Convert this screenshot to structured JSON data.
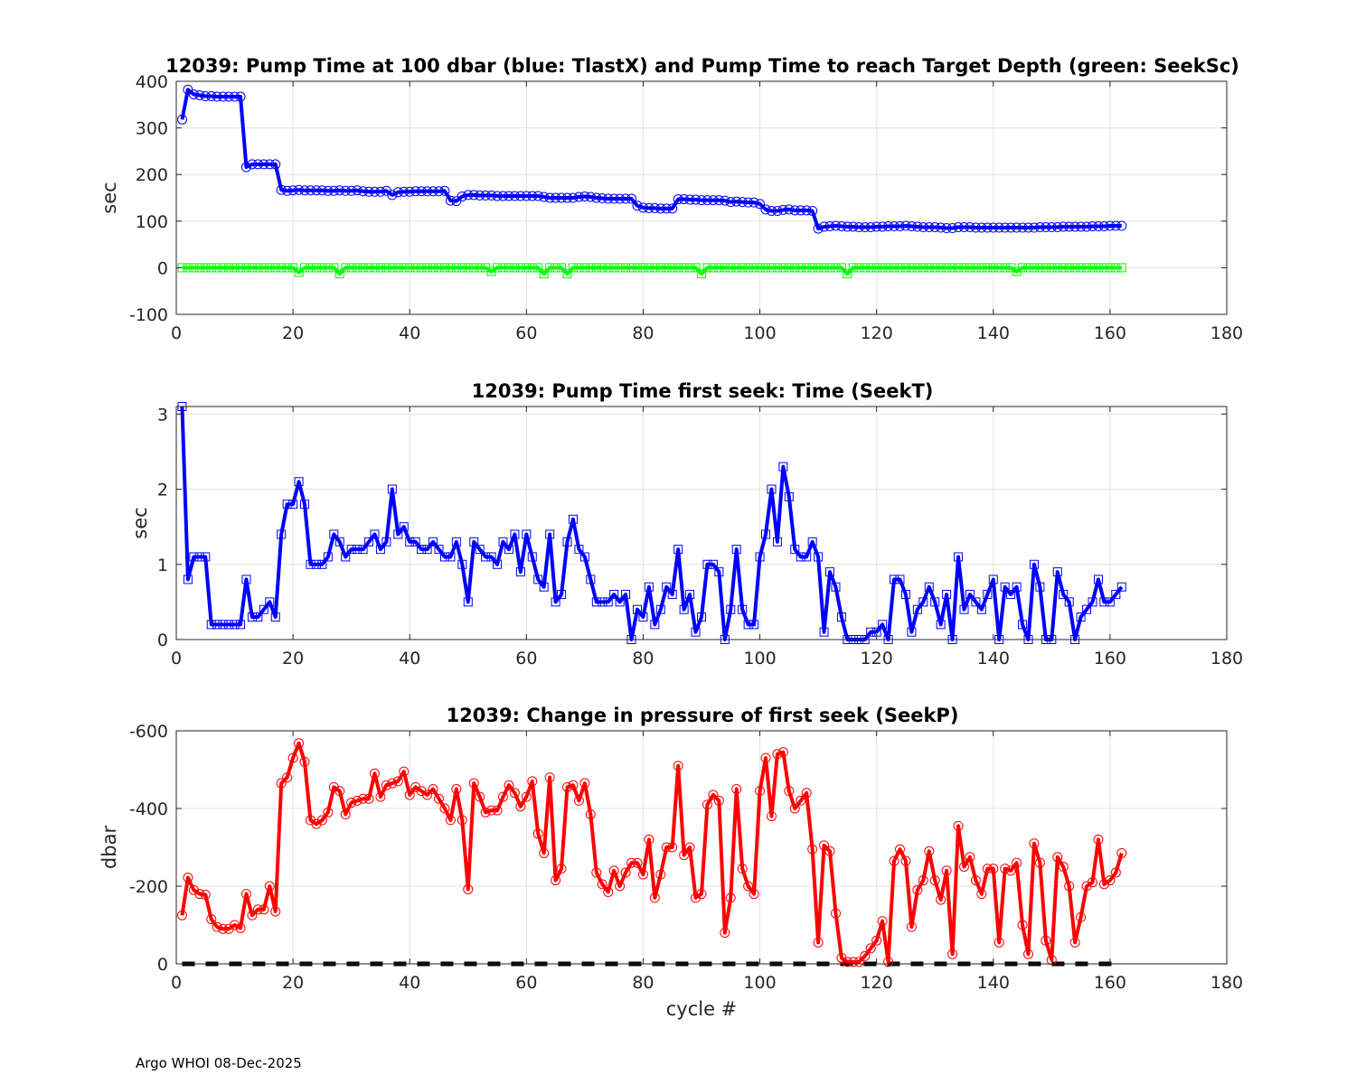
{
  "footer": "Argo WHOI 08-Dec-2025",
  "chart_data": [
    {
      "type": "line",
      "title": "12039:  Pump Time at 100 dbar (blue: TlastX) and Pump Time to reach Target Depth (green: SeekSc)",
      "xlabel": "",
      "ylabel": "sec",
      "xlim": [
        0,
        180
      ],
      "ylim": [
        -100,
        400
      ],
      "xticks": [
        "0",
        "20",
        "40",
        "60",
        "80",
        "100",
        "120",
        "140",
        "160",
        "180"
      ],
      "yticks": [
        "-100",
        "0",
        "100",
        "200",
        "300",
        "400"
      ],
      "grid": true,
      "series": [
        {
          "color": "#0000ff",
          "marker": "circle",
          "x_start": 1,
          "values": [
            318,
            382,
            372,
            370,
            368,
            368,
            367,
            367,
            367,
            367,
            367,
            216,
            222,
            222,
            222,
            222,
            222,
            167,
            165,
            166,
            167,
            166,
            166,
            166,
            166,
            165,
            165,
            166,
            165,
            165,
            166,
            164,
            163,
            163,
            163,
            165,
            156,
            162,
            163,
            163,
            164,
            164,
            164,
            164,
            164,
            165,
            144,
            143,
            153,
            156,
            156,
            155,
            155,
            155,
            154,
            154,
            154,
            154,
            154,
            154,
            154,
            154,
            152,
            150,
            150,
            150,
            150,
            150,
            152,
            153,
            152,
            150,
            149,
            148,
            148,
            148,
            148,
            148,
            133,
            129,
            128,
            128,
            127,
            127,
            127,
            147,
            147,
            146,
            146,
            145,
            145,
            145,
            145,
            144,
            141,
            142,
            141,
            140,
            140,
            137,
            125,
            122,
            122,
            124,
            125,
            123,
            123,
            123,
            122,
            84,
            88,
            89,
            90,
            89,
            88,
            88,
            87,
            87,
            87,
            88,
            88,
            89,
            89,
            89,
            90,
            89,
            88,
            87,
            87,
            87,
            86,
            85,
            85,
            87,
            87,
            87,
            86,
            86,
            86,
            86,
            86,
            86,
            86,
            86,
            86,
            86,
            86,
            87,
            87,
            87,
            87,
            88,
            88,
            88,
            88,
            88,
            89,
            89,
            89,
            90,
            90,
            90
          ]
        },
        {
          "color": "#00ff00",
          "marker": "square",
          "x_start": 1,
          "values": [
            0,
            0,
            0,
            0,
            0,
            0,
            0,
            0,
            0,
            0,
            0,
            0,
            0,
            0,
            0,
            0,
            0,
            0,
            0,
            0,
            -10,
            0,
            0,
            0,
            0,
            0,
            0,
            -13,
            0,
            0,
            0,
            0,
            0,
            0,
            0,
            0,
            0,
            0,
            0,
            0,
            0,
            0,
            0,
            0,
            0,
            0,
            0,
            0,
            0,
            0,
            0,
            0,
            0,
            -8,
            0,
            0,
            0,
            0,
            0,
            0,
            0,
            0,
            -13,
            0,
            0,
            0,
            -13,
            0,
            0,
            0,
            0,
            0,
            0,
            0,
            0,
            0,
            0,
            0,
            0,
            0,
            0,
            0,
            0,
            0,
            0,
            0,
            0,
            0,
            0,
            -13,
            0,
            0,
            0,
            0,
            0,
            0,
            0,
            0,
            0,
            0,
            0,
            0,
            0,
            0,
            0,
            0,
            0,
            0,
            0,
            0,
            0,
            0,
            0,
            0,
            -13,
            0,
            0,
            0,
            0,
            0,
            0,
            0,
            0,
            0,
            0,
            0,
            0,
            0,
            0,
            0,
            0,
            0,
            0,
            0,
            0,
            0,
            0,
            0,
            0,
            0,
            0,
            0,
            0,
            -8,
            0,
            0,
            0,
            0,
            0,
            0,
            0,
            0,
            0,
            0,
            0,
            0,
            0,
            0,
            0,
            0,
            0,
            0
          ]
        }
      ]
    },
    {
      "type": "line",
      "title": "12039: Pump Time first seek: Time (SeekT)",
      "xlabel": "",
      "ylabel": "sec",
      "xlim": [
        0,
        180
      ],
      "ylim": [
        0,
        3.1
      ],
      "xticks": [
        "0",
        "20",
        "40",
        "60",
        "80",
        "100",
        "120",
        "140",
        "160",
        "180"
      ],
      "yticks": [
        "0",
        "1",
        "2",
        "3"
      ],
      "ytick_values": [
        0,
        1,
        2,
        3
      ],
      "grid": true,
      "series": [
        {
          "color": "#0000ff",
          "marker": "square",
          "x_start": 1,
          "values": [
            3.1,
            0.8,
            1.1,
            1.1,
            1.1,
            0.2,
            0.2,
            0.2,
            0.2,
            0.2,
            0.2,
            0.8,
            0.3,
            0.3,
            0.4,
            0.5,
            0.3,
            1.4,
            1.8,
            1.8,
            2.1,
            1.8,
            1.0,
            1.0,
            1.0,
            1.1,
            1.4,
            1.3,
            1.1,
            1.2,
            1.2,
            1.2,
            1.3,
            1.4,
            1.2,
            1.3,
            2.0,
            1.4,
            1.5,
            1.3,
            1.3,
            1.2,
            1.2,
            1.3,
            1.2,
            1.1,
            1.1,
            1.3,
            1.0,
            0.5,
            1.3,
            1.2,
            1.1,
            1.1,
            1.0,
            1.3,
            1.2,
            1.4,
            0.9,
            1.4,
            1.1,
            0.8,
            0.7,
            1.4,
            0.5,
            0.6,
            1.3,
            1.6,
            1.2,
            1.1,
            0.8,
            0.5,
            0.5,
            0.5,
            0.6,
            0.5,
            0.6,
            0.0,
            0.4,
            0.3,
            0.7,
            0.2,
            0.4,
            0.7,
            0.6,
            1.2,
            0.4,
            0.6,
            0.1,
            0.3,
            1.0,
            1.0,
            0.9,
            0.0,
            0.4,
            1.2,
            0.4,
            0.2,
            0.2,
            1.1,
            1.4,
            2.0,
            1.3,
            2.3,
            1.9,
            1.2,
            1.1,
            1.1,
            1.3,
            1.1,
            0.1,
            0.9,
            0.7,
            0.3,
            0.0,
            0.0,
            0.0,
            0.0,
            0.1,
            0.1,
            0.2,
            0.0,
            0.8,
            0.8,
            0.6,
            0.1,
            0.4,
            0.5,
            0.7,
            0.5,
            0.2,
            0.6,
            0.0,
            1.1,
            0.4,
            0.6,
            0.5,
            0.4,
            0.6,
            0.8,
            0.0,
            0.7,
            0.6,
            0.7,
            0.2,
            0.0,
            1.0,
            0.7,
            0.0,
            0.0,
            0.9,
            0.6,
            0.5,
            0.0,
            0.3,
            0.4,
            0.5,
            0.8,
            0.5,
            0.5,
            0.6,
            0.7
          ]
        }
      ]
    },
    {
      "type": "line",
      "title": "12039: Change in pressure of first seek (SeekP)",
      "xlabel": "cycle #",
      "ylabel": "dbar",
      "xlim": [
        0,
        180
      ],
      "ylim": [
        0,
        -600
      ],
      "y_reversed": true,
      "xticks": [
        "0",
        "20",
        "40",
        "60",
        "80",
        "100",
        "120",
        "140",
        "160",
        "180"
      ],
      "yticks": [
        "0",
        "-200",
        "-400",
        "-600"
      ],
      "ytick_values": [
        0,
        -200,
        -400,
        -600
      ],
      "grid": true,
      "series": [
        {
          "color": "#ff0000",
          "marker": "circle",
          "x_start": 1,
          "values": [
            -125,
            -222,
            -190,
            -180,
            -178,
            -115,
            -95,
            -90,
            -90,
            -100,
            -92,
            -180,
            -125,
            -140,
            -140,
            -200,
            -135,
            -465,
            -480,
            -530,
            -568,
            -520,
            -370,
            -360,
            -370,
            -390,
            -455,
            -445,
            -385,
            -415,
            -420,
            -425,
            -425,
            -490,
            -430,
            -460,
            -465,
            -470,
            -495,
            -435,
            -455,
            -445,
            -435,
            -450,
            -425,
            -400,
            -370,
            -450,
            -370,
            -192,
            -465,
            -430,
            -390,
            -395,
            -395,
            -430,
            -460,
            -440,
            -405,
            -430,
            -470,
            -335,
            -285,
            -480,
            -215,
            -245,
            -455,
            -460,
            -420,
            -465,
            -385,
            -235,
            -205,
            -185,
            -240,
            -200,
            -235,
            -260,
            -260,
            -230,
            -320,
            -170,
            -230,
            -300,
            -300,
            -510,
            -280,
            -300,
            -170,
            -180,
            -410,
            -435,
            -420,
            -80,
            -170,
            -450,
            -245,
            -200,
            -180,
            -445,
            -530,
            -380,
            -540,
            -545,
            -445,
            -400,
            -420,
            -440,
            -295,
            -55,
            -305,
            -290,
            -130,
            -15,
            -5,
            -5,
            -5,
            -20,
            -40,
            -60,
            -110,
            -5,
            -265,
            -295,
            -265,
            -95,
            -190,
            -215,
            -290,
            -215,
            -165,
            -240,
            -25,
            -355,
            -250,
            -275,
            -215,
            -180,
            -245,
            -245,
            -55,
            -245,
            -240,
            -260,
            -100,
            -25,
            -310,
            -260,
            -60,
            -10,
            -275,
            -250,
            -200,
            -55,
            -120,
            -200,
            -210,
            -320,
            -205,
            -215,
            -235,
            -285
          ]
        }
      ],
      "reference_line": {
        "y": 0,
        "color": "#000000",
        "style": "dashed",
        "x_range": [
          1,
          162
        ]
      }
    }
  ]
}
